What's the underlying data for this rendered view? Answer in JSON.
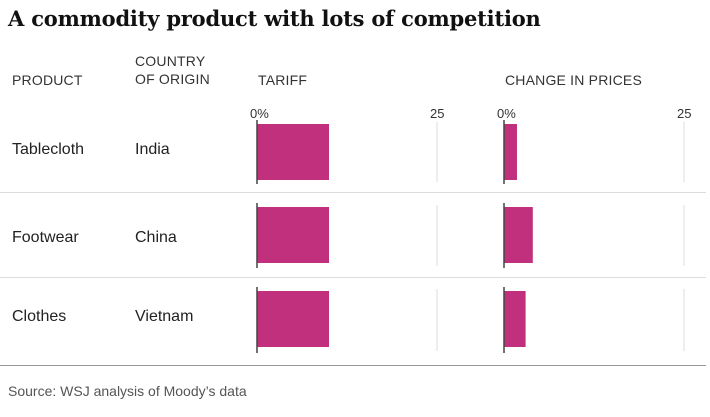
{
  "title": "A commodity product with lots of competition",
  "headers": {
    "product": "PRODUCT",
    "country_line1": "COUNTRY",
    "country_line2": "OF ORIGIN",
    "tariff": "TARIFF",
    "change": "CHANGE IN PRICES"
  },
  "source": "Source: WSJ analysis of Moody’s data",
  "colors": {
    "bar": "#c0307c",
    "axis": "#444444",
    "grid": "#dddddd"
  },
  "chart_data": [
    {
      "type": "bar",
      "orientation": "horizontal",
      "title": "TARIFF",
      "categories": [
        "Tablecloth",
        "Footwear",
        "Clothes"
      ],
      "countries": [
        "India",
        "China",
        "Vietnam"
      ],
      "values": [
        10,
        10,
        10
      ],
      "xlim": [
        0,
        25
      ],
      "tick_labels": [
        "0%",
        "25"
      ]
    },
    {
      "type": "bar",
      "orientation": "horizontal",
      "title": "CHANGE IN PRICES",
      "categories": [
        "Tablecloth",
        "Footwear",
        "Clothes"
      ],
      "countries": [
        "India",
        "China",
        "Vietnam"
      ],
      "values": [
        1.8,
        4.0,
        3.0
      ],
      "xlim": [
        0,
        25
      ],
      "tick_labels": [
        "0%",
        "25"
      ]
    }
  ]
}
